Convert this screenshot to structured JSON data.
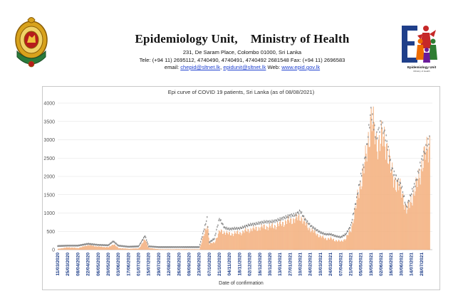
{
  "header": {
    "org_name": "Epidemiology Unit,",
    "ministry": "Ministry of Health",
    "address": "231, De Saram Place, Colombo 01000, Sri Lanka",
    "tel": "Tele: (+94 11) 2695112, 4740490, 4740491, 4740492 2681548  Fax: (+94 11) 2696583",
    "email_prefix": "email:",
    "email1": "chepid@sltnet.lk",
    "email_sep": ",",
    "email2": "epidunit@sltnet.lk",
    "web_prefix": "Web:",
    "web": "www.epid.gov.lk",
    "logo_caption": "Epidemiology Unit",
    "logo_sub": "Ministry of Health"
  },
  "colors": {
    "bar": "#f6bd8f",
    "bar_edge": "#ef9b62",
    "marker": "#8c8c8c",
    "grid": "#e0e0e0",
    "tick_text": "#1f3f8a"
  },
  "chart_data": {
    "type": "bar",
    "title": "Epi curve of COVID 19 patients, Sri Lanka  (as of 08/08/2021)",
    "xlabel": "Date of confirmation",
    "ylabel": "",
    "ylim": [
      0,
      4000
    ],
    "yticks": [
      0,
      500,
      1000,
      1500,
      2000,
      2500,
      3000,
      3500,
      4000
    ],
    "grid": true,
    "legend": "none",
    "x_tick_labels": [
      "11/03/2020",
      "25/03/2020",
      "08/04/2020",
      "22/04/2020",
      "06/05/2020",
      "20/05/2020",
      "03/06/2020",
      "17/06/2020",
      "01/07/2020",
      "15/07/2020",
      "29/07/2020",
      "12/08/2020",
      "26/08/2020",
      "09/09/2020",
      "23/09/2020",
      "07/10/2020",
      "21/10/2020",
      "04/11/2020",
      "18/11/2020",
      "02/12/2020",
      "16/12/2020",
      "30/12/2020",
      "13/01/2021",
      "27/01/2021",
      "10/02/2021",
      "24/02/2021",
      "10/03/2021",
      "24/03/2021",
      "07/04/2021",
      "21/04/2021",
      "05/05/2021",
      "19/05/2021",
      "02/06/2021",
      "16/06/2021",
      "30/06/2021",
      "14/07/2021",
      "28/07/2021"
    ],
    "series": [
      {
        "type": "bar",
        "points": [
          [
            "11/03/2020",
            20
          ],
          [
            "25/03/2020",
            60
          ],
          [
            "08/04/2020",
            40
          ],
          [
            "22/04/2020",
            120
          ],
          [
            "06/05/2020",
            80
          ],
          [
            "20/05/2020",
            60
          ],
          [
            "27/05/2020",
            150
          ],
          [
            "03/06/2020",
            40
          ],
          [
            "17/06/2020",
            20
          ],
          [
            "01/07/2020",
            30
          ],
          [
            "10/07/2020",
            290
          ],
          [
            "15/07/2020",
            40
          ],
          [
            "29/07/2020",
            10
          ],
          [
            "12/08/2020",
            10
          ],
          [
            "26/08/2020",
            10
          ],
          [
            "09/09/2020",
            10
          ],
          [
            "23/09/2020",
            10
          ],
          [
            "04/10/2020",
            700
          ],
          [
            "07/10/2020",
            150
          ],
          [
            "14/10/2020",
            200
          ],
          [
            "21/10/2020",
            500
          ],
          [
            "28/10/2020",
            480
          ],
          [
            "04/11/2020",
            420
          ],
          [
            "11/11/2020",
            450
          ],
          [
            "18/11/2020",
            450
          ],
          [
            "25/11/2020",
            500
          ],
          [
            "02/12/2020",
            550
          ],
          [
            "09/12/2020",
            570
          ],
          [
            "16/12/2020",
            600
          ],
          [
            "23/12/2020",
            620
          ],
          [
            "30/12/2020",
            620
          ],
          [
            "06/01/2021",
            650
          ],
          [
            "13/01/2021",
            700
          ],
          [
            "20/01/2021",
            750
          ],
          [
            "27/01/2021",
            800
          ],
          [
            "03/02/2021",
            820
          ],
          [
            "10/02/2021",
            900
          ],
          [
            "17/02/2021",
            700
          ],
          [
            "24/02/2021",
            550
          ],
          [
            "03/03/2021",
            450
          ],
          [
            "10/03/2021",
            350
          ],
          [
            "17/03/2021",
            300
          ],
          [
            "24/03/2021",
            300
          ],
          [
            "31/03/2021",
            250
          ],
          [
            "07/04/2021",
            220
          ],
          [
            "14/04/2021",
            300
          ],
          [
            "21/04/2021",
            550
          ],
          [
            "28/04/2021",
            1200
          ],
          [
            "05/05/2021",
            1900
          ],
          [
            "12/05/2021",
            2500
          ],
          [
            "19/05/2021",
            3650
          ],
          [
            "26/05/2021",
            2900
          ],
          [
            "02/06/2021",
            3050
          ],
          [
            "09/06/2021",
            2900
          ],
          [
            "16/06/2021",
            2100
          ],
          [
            "23/06/2021",
            1800
          ],
          [
            "30/06/2021",
            1600
          ],
          [
            "07/07/2021",
            1050
          ],
          [
            "14/07/2021",
            1400
          ],
          [
            "21/07/2021",
            1750
          ],
          [
            "28/07/2021",
            2300
          ],
          [
            "04/08/2021",
            2700
          ],
          [
            "08/08/2021",
            2950
          ]
        ]
      },
      {
        "type": "marker",
        "points": [
          [
            "11/03/2020",
            100
          ],
          [
            "25/03/2020",
            110
          ],
          [
            "08/04/2020",
            110
          ],
          [
            "22/04/2020",
            160
          ],
          [
            "06/05/2020",
            130
          ],
          [
            "20/05/2020",
            120
          ],
          [
            "27/05/2020",
            230
          ],
          [
            "03/06/2020",
            110
          ],
          [
            "17/06/2020",
            80
          ],
          [
            "01/07/2020",
            90
          ],
          [
            "10/07/2020",
            380
          ],
          [
            "15/07/2020",
            90
          ],
          [
            "29/07/2020",
            70
          ],
          [
            "12/08/2020",
            70
          ],
          [
            "26/08/2020",
            70
          ],
          [
            "09/09/2020",
            70
          ],
          [
            "23/09/2020",
            70
          ],
          [
            "04/10/2020",
            860
          ],
          [
            "07/10/2020",
            200
          ],
          [
            "14/10/2020",
            300
          ],
          [
            "21/10/2020",
            850
          ],
          [
            "28/10/2020",
            600
          ],
          [
            "04/11/2020",
            560
          ],
          [
            "11/11/2020",
            580
          ],
          [
            "18/11/2020",
            580
          ],
          [
            "25/11/2020",
            630
          ],
          [
            "02/12/2020",
            680
          ],
          [
            "09/12/2020",
            700
          ],
          [
            "16/12/2020",
            730
          ],
          [
            "23/12/2020",
            760
          ],
          [
            "30/12/2020",
            760
          ],
          [
            "06/01/2021",
            780
          ],
          [
            "13/01/2021",
            830
          ],
          [
            "20/01/2021",
            880
          ],
          [
            "27/01/2021",
            930
          ],
          [
            "03/02/2021",
            950
          ],
          [
            "10/02/2021",
            1050
          ],
          [
            "17/02/2021",
            820
          ],
          [
            "24/02/2021",
            660
          ],
          [
            "03/03/2021",
            560
          ],
          [
            "10/03/2021",
            470
          ],
          [
            "17/03/2021",
            420
          ],
          [
            "24/03/2021",
            420
          ],
          [
            "31/03/2021",
            370
          ],
          [
            "07/04/2021",
            340
          ],
          [
            "14/04/2021",
            420
          ],
          [
            "21/04/2021",
            650
          ],
          [
            "28/04/2021",
            1300
          ],
          [
            "05/05/2021",
            2000
          ],
          [
            "12/05/2021",
            2600
          ],
          [
            "19/05/2021",
            3800
          ],
          [
            "26/05/2021",
            3050
          ],
          [
            "02/06/2021",
            3450
          ],
          [
            "09/06/2021",
            3050
          ],
          [
            "16/06/2021",
            2250
          ],
          [
            "23/06/2021",
            1950
          ],
          [
            "30/06/2021",
            1750
          ],
          [
            "07/07/2021",
            1150
          ],
          [
            "14/07/2021",
            1550
          ],
          [
            "21/07/2021",
            1900
          ],
          [
            "28/07/2021",
            2450
          ],
          [
            "04/08/2021",
            2800
          ],
          [
            "08/08/2021",
            3050
          ]
        ]
      }
    ]
  }
}
